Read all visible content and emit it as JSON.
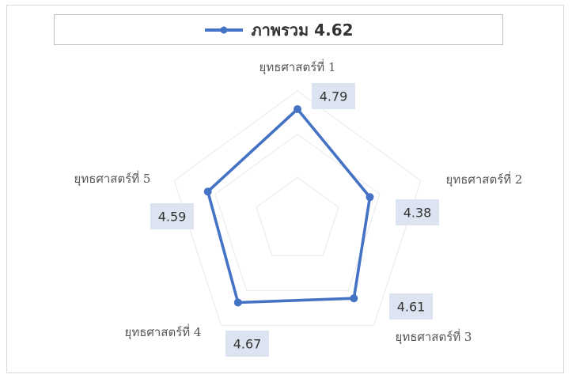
{
  "chart_data": {
    "type": "radar",
    "categories": [
      "ยุทธศาสตร์ที่ 1",
      "ยุทธศาสตร์ที่ 2",
      "ยุทธศาสตร์ที่ 3",
      "ยุทธศาสตร์ที่ 4",
      "ยุทธศาสตร์ที่ 5"
    ],
    "series": [
      {
        "name": "ภาพรวม 4.62",
        "values": [
          4.79,
          4.38,
          4.61,
          4.67,
          4.59
        ],
        "labels": [
          "4.79",
          "4.38",
          "4.61",
          "4.67",
          "4.59"
        ],
        "color": "#4472c4"
      }
    ],
    "rlim": [
      3.5,
      5.0
    ],
    "grid": true,
    "legend": "top",
    "gridline_color": "#ececec",
    "data_label_bg": "#dbe4f0"
  }
}
